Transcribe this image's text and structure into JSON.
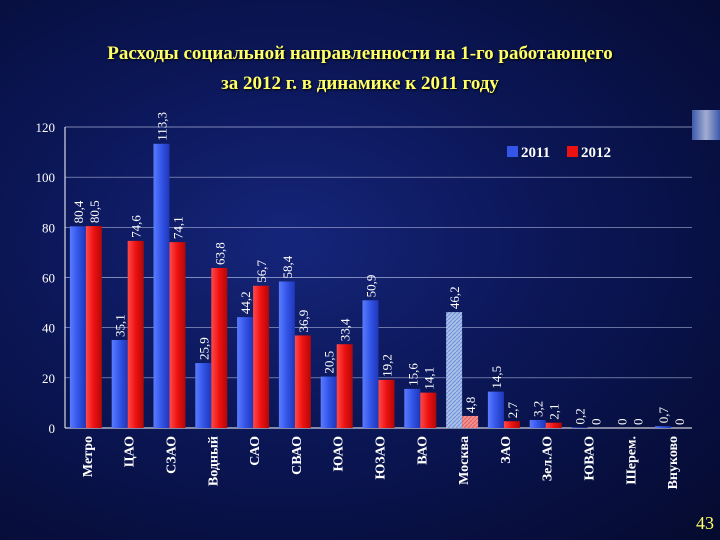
{
  "slide": {
    "title_line1": "Расходы социальной направленности на 1-го работающего",
    "title_line2": "за 2012 г. в динамике к 2011 году",
    "page_number": "43"
  },
  "colors": {
    "series_2011": "#3355e8",
    "series_2012": "#ee1111",
    "highlight_2011": "#a8c0e8",
    "highlight_2012": "#f09090",
    "axis_text": "#ffffff",
    "grid": "#c8d0f0"
  },
  "chart_data": {
    "type": "bar",
    "title": "",
    "xlabel": "",
    "ylabel": "",
    "ylim": [
      0,
      120
    ],
    "yticks": [
      0,
      20,
      40,
      60,
      80,
      100,
      120
    ],
    "grid": true,
    "legend_position": "top-right",
    "categories": [
      "Метро",
      "ЦАО",
      "СЗАО",
      "Водный",
      "САО",
      "СВАО",
      "ЮАО",
      "ЮЗАО",
      "ВАО",
      "Москва",
      "ЗАО",
      "Зел.АО",
      "ЮВАО",
      "Шерем.",
      "Внуково"
    ],
    "highlight_category": "Москва",
    "series": [
      {
        "name": "2011",
        "values": [
          80.4,
          35.1,
          113.3,
          25.9,
          44.2,
          58.4,
          20.5,
          50.9,
          15.6,
          46.2,
          14.5,
          3.2,
          0.2,
          0,
          0.7
        ],
        "labels": [
          "80,4",
          "35,1",
          "113,3",
          "25,9",
          "44,2",
          "58,4",
          "20,5",
          "50,9",
          "15,6",
          "46,2",
          "14,5",
          "3,2",
          "0,2",
          "0",
          "0,7"
        ]
      },
      {
        "name": "2012",
        "values": [
          80.5,
          74.6,
          74.1,
          63.8,
          56.7,
          36.9,
          33.4,
          19.2,
          14.1,
          4.8,
          2.7,
          2.1,
          0,
          0,
          0
        ],
        "labels": [
          "80,5",
          "74,6",
          "74,1",
          "63,8",
          "56,7",
          "36,9",
          "33,4",
          "19,2",
          "14,1",
          "4,8",
          "2,7",
          "2,1",
          "0",
          "0",
          "0"
        ]
      }
    ]
  }
}
